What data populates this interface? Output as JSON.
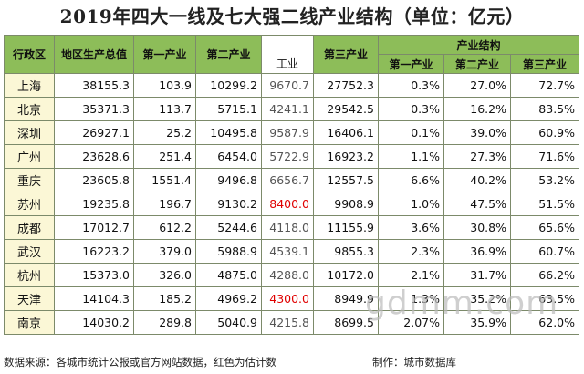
{
  "title": "2019年四大一线及七大强二线产业结构（单位：亿元）",
  "headers": {
    "region": "行政区",
    "gdp": "地区生产总值",
    "primary": "第一产业",
    "secondary": "第二产业",
    "industry": "工业",
    "tertiary": "第三产业",
    "structure": "产业结构",
    "s_primary": "第一产业",
    "s_secondary": "第二产业",
    "s_tertiary": "第三产业"
  },
  "rows": [
    {
      "city": "上海",
      "gdp": "38155.3",
      "p1": "103.9",
      "p2": "10299.2",
      "ind": "9670.7",
      "p3": "27752.3",
      "r1": "0.3%",
      "r2": "27.0%",
      "r3": "72.7%",
      "estimated": false
    },
    {
      "city": "北京",
      "gdp": "35371.3",
      "p1": "113.7",
      "p2": "5715.1",
      "ind": "4241.1",
      "p3": "29542.5",
      "r1": "0.3%",
      "r2": "16.2%",
      "r3": "83.5%",
      "estimated": false
    },
    {
      "city": "深圳",
      "gdp": "26927.1",
      "p1": "25.2",
      "p2": "10495.8",
      "ind": "9587.9",
      "p3": "16406.1",
      "r1": "0.1%",
      "r2": "39.0%",
      "r3": "60.9%",
      "estimated": false
    },
    {
      "city": "广州",
      "gdp": "23628.6",
      "p1": "251.4",
      "p2": "6454.0",
      "ind": "5722.9",
      "p3": "16923.2",
      "r1": "1.1%",
      "r2": "27.3%",
      "r3": "71.6%",
      "estimated": false
    },
    {
      "city": "重庆",
      "gdp": "23605.8",
      "p1": "1551.4",
      "p2": "9496.8",
      "ind": "6656.7",
      "p3": "12557.5",
      "r1": "6.6%",
      "r2": "40.2%",
      "r3": "53.2%",
      "estimated": false
    },
    {
      "city": "苏州",
      "gdp": "19235.8",
      "p1": "196.7",
      "p2": "9130.2",
      "ind": "8400.0",
      "p3": "9908.9",
      "r1": "1.0%",
      "r2": "47.5%",
      "r3": "51.5%",
      "estimated": true
    },
    {
      "city": "成都",
      "gdp": "17012.7",
      "p1": "612.2",
      "p2": "5244.6",
      "ind": "4118.0",
      "p3": "11155.9",
      "r1": "3.6%",
      "r2": "30.8%",
      "r3": "65.6%",
      "estimated": false
    },
    {
      "city": "武汉",
      "gdp": "16223.2",
      "p1": "379.0",
      "p2": "5988.9",
      "ind": "4539.1",
      "p3": "9855.3",
      "r1": "2.3%",
      "r2": "36.9%",
      "r3": "60.7%",
      "estimated": false
    },
    {
      "city": "杭州",
      "gdp": "15373.0",
      "p1": "326.0",
      "p2": "4875.0",
      "ind": "4288.0",
      "p3": "10172.0",
      "r1": "2.1%",
      "r2": "31.7%",
      "r3": "66.2%",
      "estimated": false
    },
    {
      "city": "天津",
      "gdp": "14104.3",
      "p1": "185.2",
      "p2": "4969.2",
      "ind": "4300.0",
      "p3": "8949.9",
      "r1": "1.3%",
      "r2": "35.2%",
      "r3": "63.5%",
      "estimated": true
    },
    {
      "city": "南京",
      "gdp": "14030.2",
      "p1": "289.8",
      "p2": "5040.9",
      "ind": "4215.8",
      "p3": "8699.5",
      "r1": "2.07%",
      "r2": "35.9%",
      "r3": "62.0%",
      "estimated": false
    }
  ],
  "footer": {
    "source": "数据来源：各城市统计公报或官方网站数据，红色为估计数",
    "maker": "制作：城市数据库"
  },
  "watermark": "gdmm.com",
  "colors": {
    "header_bg": "#8dbd59",
    "city_bg": "#fbf7d6",
    "estimate": "#e00000"
  }
}
